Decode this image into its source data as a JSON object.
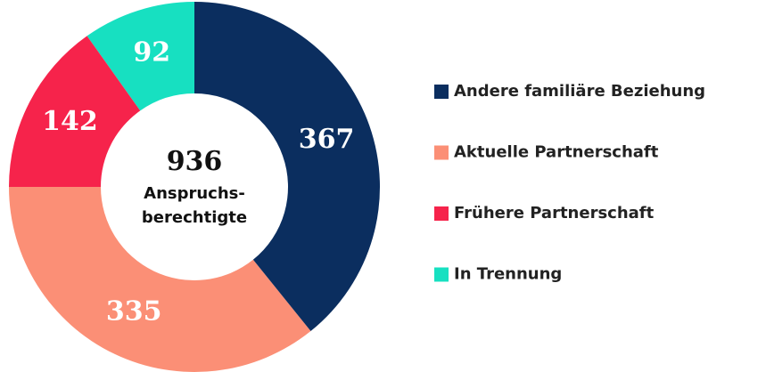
{
  "chart_data": {
    "type": "donut",
    "categories": [
      "Andere familiäre Beziehung",
      "Aktuelle Partnerschaft",
      "Frühere Partnerschaft",
      "In Trennung"
    ],
    "values": [
      367,
      335,
      142,
      92
    ],
    "colors": [
      "#0b2e5f",
      "#fb8f76",
      "#f6234b",
      "#17e0c1"
    ],
    "center_value": 936,
    "center_label": [
      "Anspruchs-",
      "berechtigte"
    ],
    "legend": "right"
  }
}
